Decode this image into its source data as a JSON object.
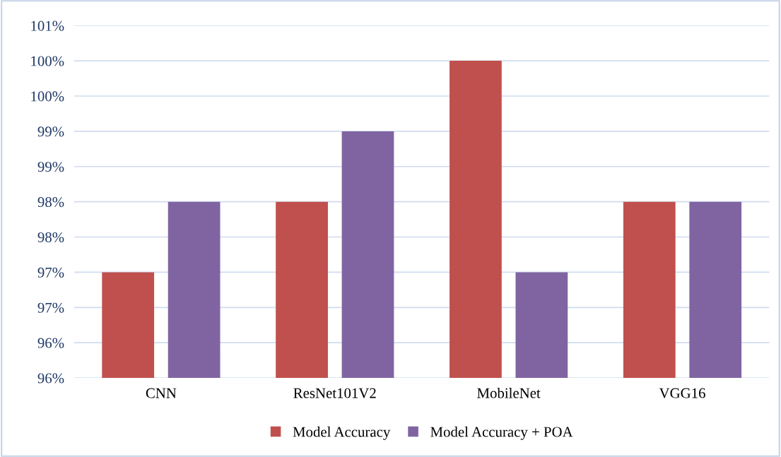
{
  "chart_data": {
    "type": "bar",
    "categories": [
      "CNN",
      "ResNet101V2",
      "MobileNet",
      "VGG16"
    ],
    "series": [
      {
        "name": "Model Accuracy",
        "color": "#c0504d",
        "values": [
          97.0,
          98.0,
          100.0,
          98.0
        ]
      },
      {
        "name": "Model Accuracy + POA",
        "color": "#8064a2",
        "values": [
          98.0,
          99.0,
          97.0,
          98.0
        ]
      }
    ],
    "ylim": [
      95.5,
      100.5
    ],
    "yticks": [
      {
        "value": 95.5,
        "label": "96%"
      },
      {
        "value": 96.0,
        "label": "96%"
      },
      {
        "value": 96.5,
        "label": "97%"
      },
      {
        "value": 97.0,
        "label": "97%"
      },
      {
        "value": 97.5,
        "label": "98%"
      },
      {
        "value": 98.0,
        "label": "98%"
      },
      {
        "value": 98.5,
        "label": "99%"
      },
      {
        "value": 99.0,
        "label": "99%"
      },
      {
        "value": 99.5,
        "label": "100%"
      },
      {
        "value": 100.0,
        "label": "100%"
      },
      {
        "value": 100.5,
        "label": "101%"
      }
    ],
    "grid": "y",
    "legend": "bottom"
  }
}
